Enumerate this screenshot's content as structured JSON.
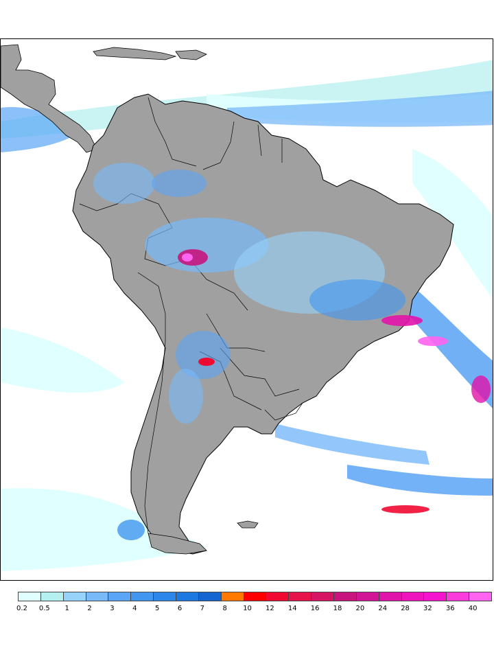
{
  "legend": {
    "bins": [
      {
        "color": "#e0ffff",
        "label": "0.2"
      },
      {
        "color": "#b4f0f0",
        "label": "0.5"
      },
      {
        "color": "#96d2fa",
        "label": "1"
      },
      {
        "color": "#78b9fa",
        "label": "2"
      },
      {
        "color": "#5aa5f5",
        "label": "3"
      },
      {
        "color": "#4196f0",
        "label": "4"
      },
      {
        "color": "#2d87eb",
        "label": "5"
      },
      {
        "color": "#1e78e1",
        "label": "6"
      },
      {
        "color": "#1464d2",
        "label": "7"
      },
      {
        "color": "#ff7800",
        "label": "8"
      },
      {
        "color": "#ff0000",
        "label": "10"
      },
      {
        "color": "#f00a32",
        "label": "12"
      },
      {
        "color": "#e6144b",
        "label": "14"
      },
      {
        "color": "#d71464",
        "label": "16"
      },
      {
        "color": "#c8147d",
        "label": "18"
      },
      {
        "color": "#d21496",
        "label": "20"
      },
      {
        "color": "#e114aa",
        "label": "24"
      },
      {
        "color": "#ee14be",
        "label": "28"
      },
      {
        "color": "#f514cd",
        "label": "32"
      },
      {
        "color": "#fa3cdc",
        "label": "36"
      },
      {
        "color": "#ff64f0",
        "label": "40"
      }
    ]
  },
  "colors": {
    "land": "#a0a0a0",
    "ocean": "#ffffff",
    "border": "#000000"
  }
}
